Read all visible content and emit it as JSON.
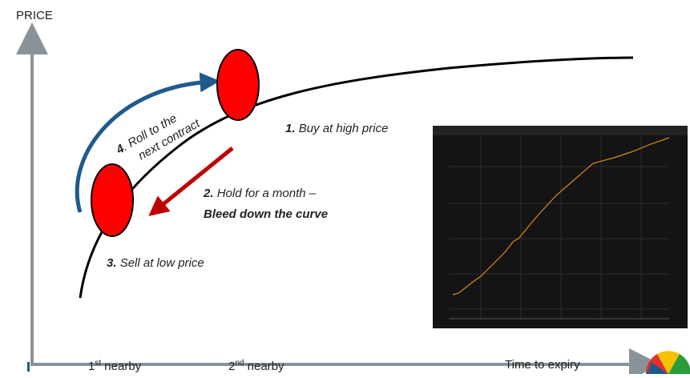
{
  "axis": {
    "y_label": "PRICE",
    "x_label": "Time to expiry"
  },
  "steps": [
    {
      "num": "1.",
      "text": "Buy at high price"
    },
    {
      "num": "2.",
      "text": "Hold for a month –",
      "emphasis": "Bleed down the curve"
    },
    {
      "num": "3.",
      "text": "Sell at low price"
    },
    {
      "num": "4",
      "text": ". Roll to the",
      "line2": "next contract"
    }
  ],
  "x_labels": [
    {
      "num": "1",
      "sup": "st",
      "text": " nearby"
    },
    {
      "num": "2",
      "sup": "nd",
      "text": " nearby"
    }
  ]
}
